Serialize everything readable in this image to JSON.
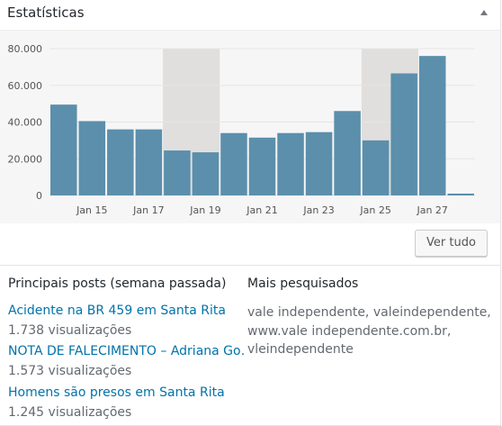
{
  "widget": {
    "title": "Estatísticas",
    "toggle_icon": "arrow-up-icon"
  },
  "chart_data": {
    "type": "bar",
    "categories": [
      "Jan 14",
      "Jan 15",
      "Jan 16",
      "Jan 17",
      "Jan 18",
      "Jan 19",
      "Jan 20",
      "Jan 21",
      "Jan 22",
      "Jan 23",
      "Jan 24",
      "Jan 25",
      "Jan 26",
      "Jan 27",
      "Jan 28"
    ],
    "values": [
      49500,
      40500,
      36000,
      36000,
      24500,
      23500,
      34000,
      31500,
      34000,
      34500,
      46000,
      30000,
      66500,
      76000,
      1000
    ],
    "weekend_highlights": [
      [
        4,
        5
      ],
      [
        11,
        12
      ]
    ],
    "x_tick_labels": [
      "Jan 15",
      "Jan 17",
      "Jan 19",
      "Jan 21",
      "Jan 23",
      "Jan 25",
      "Jan 27"
    ],
    "y_tick_labels": [
      "0",
      "20.000",
      "40.000",
      "60.000",
      "80.000"
    ],
    "ylim": [
      0,
      80000
    ],
    "bar_color": "#5b8fac",
    "highlight_color": "#e1dfdd"
  },
  "actions": {
    "view_all_label": "Ver tudo"
  },
  "top_posts": {
    "title": "Principais posts (semana passada)",
    "items": [
      {
        "title": "Acidente na BR 459 em Santa Rita",
        "views": "1.738 visualizações"
      },
      {
        "title": "NOTA DE FALECIMENTO – Adriana Go…",
        "views": "1.573 visualizações"
      },
      {
        "title": "Homens são presos em Santa Rita",
        "views": "1.245 visualizações"
      }
    ]
  },
  "top_searches": {
    "title": "Mais pesquisados",
    "text": "vale independente, valeindependente, www.vale independente.com.br, vleindependente"
  }
}
